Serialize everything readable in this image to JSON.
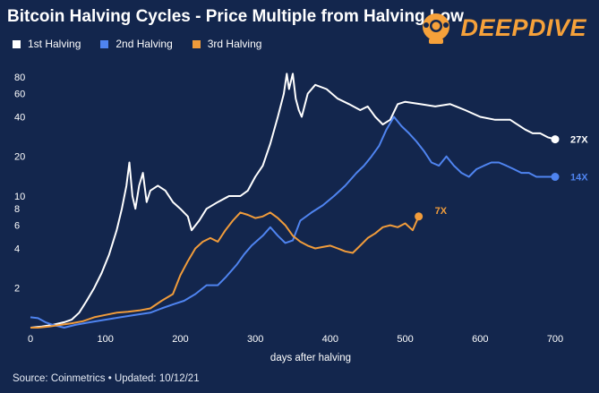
{
  "title": "Bitcoin Halving Cycles - Price Multiple from Halving Low",
  "logo": {
    "text": "DEEPDIVE",
    "icon": "diver-helmet-icon"
  },
  "source": "Source: Coinmetrics • Updated: 10/12/21",
  "chart_data": {
    "type": "line",
    "title": "Bitcoin Halving Cycles - Price Multiple from Halving Low",
    "xlabel": "days after halving",
    "ylabel": "",
    "xlim": [
      0,
      700
    ],
    "ylim": [
      1,
      100
    ],
    "yscale": "log",
    "x_ticks": [
      0,
      100,
      200,
      300,
      400,
      500,
      600,
      700
    ],
    "y_ticks": [
      2,
      4,
      6,
      8,
      10,
      20,
      40,
      60,
      80
    ],
    "grid": false,
    "legend_position": "top-left",
    "series": [
      {
        "name": "1st Halving",
        "color": "#ffffff",
        "end_label": "27X",
        "points": [
          [
            0,
            1
          ],
          [
            15,
            1.02
          ],
          [
            30,
            1.05
          ],
          [
            45,
            1.1
          ],
          [
            55,
            1.15
          ],
          [
            65,
            1.3
          ],
          [
            75,
            1.6
          ],
          [
            85,
            2.0
          ],
          [
            95,
            2.6
          ],
          [
            105,
            3.6
          ],
          [
            115,
            5.5
          ],
          [
            122,
            8
          ],
          [
            128,
            12
          ],
          [
            132,
            18
          ],
          [
            136,
            10
          ],
          [
            140,
            8
          ],
          [
            145,
            12
          ],
          [
            150,
            15
          ],
          [
            155,
            9
          ],
          [
            160,
            11
          ],
          [
            170,
            12
          ],
          [
            180,
            11
          ],
          [
            190,
            9
          ],
          [
            200,
            8
          ],
          [
            210,
            7
          ],
          [
            215,
            5.5
          ],
          [
            225,
            6.5
          ],
          [
            235,
            8
          ],
          [
            250,
            9
          ],
          [
            265,
            10
          ],
          [
            280,
            10
          ],
          [
            290,
            11
          ],
          [
            300,
            14
          ],
          [
            310,
            17
          ],
          [
            320,
            25
          ],
          [
            330,
            40
          ],
          [
            338,
            60
          ],
          [
            342,
            85
          ],
          [
            345,
            65
          ],
          [
            350,
            85
          ],
          [
            354,
            55
          ],
          [
            358,
            45
          ],
          [
            362,
            40
          ],
          [
            370,
            60
          ],
          [
            380,
            70
          ],
          [
            395,
            65
          ],
          [
            410,
            55
          ],
          [
            425,
            50
          ],
          [
            440,
            45
          ],
          [
            450,
            48
          ],
          [
            460,
            40
          ],
          [
            470,
            35
          ],
          [
            480,
            38
          ],
          [
            490,
            50
          ],
          [
            500,
            52
          ],
          [
            520,
            50
          ],
          [
            540,
            48
          ],
          [
            560,
            50
          ],
          [
            580,
            45
          ],
          [
            600,
            40
          ],
          [
            620,
            38
          ],
          [
            640,
            38
          ],
          [
            660,
            32
          ],
          [
            670,
            30
          ],
          [
            680,
            30
          ],
          [
            690,
            28
          ],
          [
            700,
            27
          ]
        ]
      },
      {
        "name": "2nd Halving",
        "color": "#4f84f0",
        "end_label": "14X",
        "points": [
          [
            0,
            1.2
          ],
          [
            10,
            1.18
          ],
          [
            20,
            1.1
          ],
          [
            30,
            1.05
          ],
          [
            45,
            1
          ],
          [
            60,
            1.05
          ],
          [
            80,
            1.1
          ],
          [
            100,
            1.15
          ],
          [
            120,
            1.2
          ],
          [
            140,
            1.25
          ],
          [
            160,
            1.3
          ],
          [
            175,
            1.4
          ],
          [
            190,
            1.5
          ],
          [
            205,
            1.6
          ],
          [
            220,
            1.8
          ],
          [
            235,
            2.1
          ],
          [
            250,
            2.1
          ],
          [
            260,
            2.4
          ],
          [
            275,
            3
          ],
          [
            285,
            3.6
          ],
          [
            295,
            4.2
          ],
          [
            310,
            5
          ],
          [
            320,
            5.8
          ],
          [
            330,
            5
          ],
          [
            340,
            4.4
          ],
          [
            350,
            4.6
          ],
          [
            360,
            6.5
          ],
          [
            375,
            7.5
          ],
          [
            390,
            8.5
          ],
          [
            405,
            10
          ],
          [
            420,
            12
          ],
          [
            435,
            15
          ],
          [
            445,
            17
          ],
          [
            455,
            20
          ],
          [
            465,
            24
          ],
          [
            475,
            32
          ],
          [
            485,
            40
          ],
          [
            495,
            34
          ],
          [
            505,
            30
          ],
          [
            515,
            26
          ],
          [
            525,
            22
          ],
          [
            535,
            18
          ],
          [
            545,
            17
          ],
          [
            555,
            20
          ],
          [
            565,
            17
          ],
          [
            575,
            15
          ],
          [
            585,
            14
          ],
          [
            595,
            16
          ],
          [
            605,
            17
          ],
          [
            615,
            18
          ],
          [
            625,
            18
          ],
          [
            635,
            17
          ],
          [
            645,
            16
          ],
          [
            655,
            15
          ],
          [
            665,
            15
          ],
          [
            675,
            14
          ],
          [
            685,
            14
          ],
          [
            700,
            14
          ]
        ]
      },
      {
        "name": "3rd Halving",
        "color": "#f19c3b",
        "end_label": "7X",
        "points": [
          [
            0,
            1
          ],
          [
            10,
            1
          ],
          [
            25,
            1.02
          ],
          [
            40,
            1.05
          ],
          [
            55,
            1.08
          ],
          [
            70,
            1.12
          ],
          [
            85,
            1.2
          ],
          [
            100,
            1.25
          ],
          [
            115,
            1.3
          ],
          [
            130,
            1.32
          ],
          [
            145,
            1.35
          ],
          [
            160,
            1.4
          ],
          [
            175,
            1.6
          ],
          [
            190,
            1.8
          ],
          [
            200,
            2.5
          ],
          [
            210,
            3.2
          ],
          [
            220,
            4
          ],
          [
            230,
            4.5
          ],
          [
            240,
            4.8
          ],
          [
            250,
            4.5
          ],
          [
            260,
            5.5
          ],
          [
            270,
            6.5
          ],
          [
            280,
            7.5
          ],
          [
            290,
            7.2
          ],
          [
            300,
            6.8
          ],
          [
            310,
            7
          ],
          [
            320,
            7.5
          ],
          [
            330,
            6.8
          ],
          [
            340,
            6
          ],
          [
            350,
            5
          ],
          [
            360,
            4.5
          ],
          [
            370,
            4.2
          ],
          [
            380,
            4.0
          ],
          [
            390,
            4.1
          ],
          [
            400,
            4.2
          ],
          [
            410,
            4.0
          ],
          [
            420,
            3.8
          ],
          [
            430,
            3.7
          ],
          [
            440,
            4.2
          ],
          [
            450,
            4.8
          ],
          [
            460,
            5.2
          ],
          [
            470,
            5.8
          ],
          [
            480,
            6.0
          ],
          [
            490,
            5.8
          ],
          [
            500,
            6.2
          ],
          [
            510,
            5.5
          ],
          [
            518,
            7
          ]
        ]
      }
    ]
  }
}
